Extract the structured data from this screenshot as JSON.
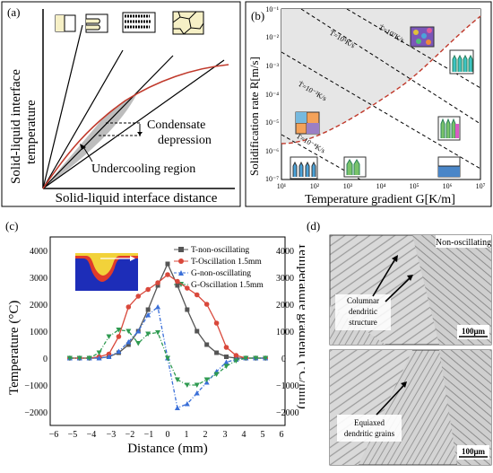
{
  "panel_a": {
    "label": "(a)",
    "ylabel_line1": "Solid-liquid interface",
    "ylabel_line2": "temperature",
    "xlabel": "Solid-liquid interface distance",
    "annotation_condensate_1": "Condensate",
    "annotation_condensate_2": "depression",
    "annotation_undercooling": "Undercooling region"
  },
  "panel_b": {
    "label": "(b)",
    "ylabel": "Solidification rate R[m/s]",
    "xlabel": "Temperature gradient  G[K/m]",
    "iso_labels": [
      "Ṫ=10⁷K/s",
      "Ṫ=10⁵K/s",
      "Ṫ=10⁻²K/s",
      "Ṫ=10⁻⁴K/s"
    ],
    "x_ticks": [
      "10¹",
      "10²",
      "10³",
      "10⁴",
      "10⁵",
      "10⁶",
      "10⁷"
    ],
    "y_ticks": [
      "10⁻¹",
      "10⁻²",
      "10⁻³",
      "10⁻⁴",
      "10⁻⁵",
      "10⁻⁶",
      "10⁻⁷"
    ]
  },
  "panel_c": {
    "label": "(c)",
    "xlabel": "Distance (mm)",
    "ylabel_left": "Temperature (°C)",
    "ylabel_right": "Temperature gradient (°C/mm)",
    "legend": [
      "T-non-oscillating",
      "T-Oscillation 1.5mm",
      "G-non-oscillating",
      "G-Oscillation 1.5mm"
    ],
    "x_ticks": [
      "−6",
      "−5",
      "−4",
      "−3",
      "−2",
      "−1",
      "0",
      "1",
      "2",
      "3",
      "4",
      "5",
      "6"
    ],
    "y_left_ticks": [
      "−2000",
      "−1000",
      "0",
      "1000",
      "2000",
      "3000",
      "4000"
    ],
    "y_right_ticks": [
      "−2000",
      "−1000",
      "0",
      "1000",
      "2000",
      "3000",
      "4000"
    ]
  },
  "panel_d": {
    "label": "(d)",
    "top_caption": "Non-oscillating",
    "top_annotation_1": "Columnar",
    "top_annotation_2": "dendritic",
    "top_annotation_3": "structure",
    "bottom_annotation_1": "Equiaxed",
    "bottom_annotation_2": "dendritic grains",
    "scale_top": "100μm",
    "scale_bottom": "100μm"
  },
  "colors": {
    "t_non": "#555555",
    "t_osc": "#d9483b",
    "g_non": "#3a6fd8",
    "g_osc": "#2e9a50",
    "curve_a": "#c0392b"
  },
  "chart_data": [
    {
      "type": "line",
      "panel": "c",
      "xlim": [
        -6,
        6
      ],
      "ylim": [
        -2500,
        4500
      ],
      "series": [
        {
          "name": "T-non-oscillating",
          "axis": "left",
          "x": [
            -5,
            -4.5,
            -4,
            -3.5,
            -3,
            -2.5,
            -2,
            -1.5,
            -1,
            -0.5,
            0,
            0.5,
            1,
            1.5,
            2,
            2.5,
            3,
            3.5,
            4,
            4.5,
            5
          ],
          "y": [
            0,
            0,
            0,
            0,
            50,
            200,
            500,
            1000,
            1800,
            2700,
            3500,
            2700,
            1800,
            1000,
            500,
            200,
            50,
            0,
            0,
            0,
            0
          ]
        },
        {
          "name": "T-Oscillation 1.5mm",
          "axis": "left",
          "x": [
            -5,
            -4.5,
            -4,
            -3.5,
            -3,
            -2.5,
            -2,
            -1.5,
            -1,
            -0.5,
            0,
            0.5,
            1,
            1.5,
            2,
            2.5,
            3,
            3.5,
            4,
            4.5,
            5
          ],
          "y": [
            0,
            0,
            0,
            50,
            150,
            800,
            1900,
            2300,
            2550,
            2800,
            3100,
            2850,
            2600,
            2350,
            2000,
            1300,
            400,
            100,
            0,
            0,
            0
          ]
        },
        {
          "name": "G-non-oscillating",
          "axis": "right",
          "x": [
            -5,
            -4.5,
            -4,
            -3.5,
            -3,
            -2.5,
            -2,
            -1.5,
            -1,
            -0.5,
            0,
            0.5,
            1,
            1.5,
            2,
            2.5,
            3,
            3.5,
            4,
            4.5,
            5
          ],
          "y": [
            0,
            0,
            0,
            0,
            50,
            250,
            600,
            1000,
            1600,
            1900,
            0,
            -1850,
            -1700,
            -1300,
            -900,
            -500,
            -150,
            -50,
            0,
            0,
            0
          ]
        },
        {
          "name": "G-Oscillation 1.5mm",
          "axis": "right",
          "x": [
            -5,
            -4.5,
            -4,
            -3.5,
            -3,
            -2.5,
            -2,
            -1.5,
            -1,
            -0.5,
            0,
            0.5,
            1,
            1.5,
            2,
            2.5,
            3,
            3.5,
            4,
            4.5,
            5
          ],
          "y": [
            0,
            0,
            0,
            200,
            800,
            1050,
            1000,
            550,
            900,
            950,
            0,
            -800,
            -1000,
            -1000,
            -800,
            -600,
            -300,
            -100,
            0,
            0,
            0
          ]
        }
      ]
    }
  ]
}
